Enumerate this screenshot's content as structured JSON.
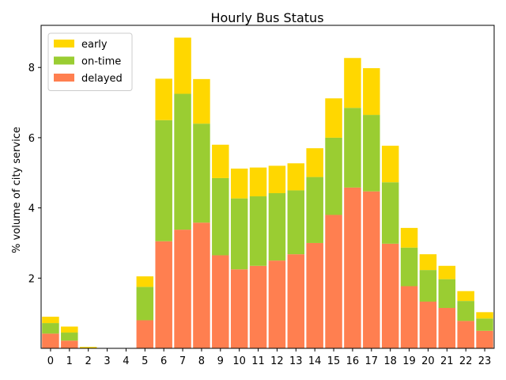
{
  "chart_data": {
    "type": "bar",
    "stacked": true,
    "title": "Hourly Bus Status",
    "xlabel": "",
    "ylabel": "% volume of city service",
    "categories": [
      "0",
      "1",
      "2",
      "3",
      "4",
      "5",
      "6",
      "7",
      "8",
      "9",
      "10",
      "11",
      "12",
      "13",
      "14",
      "15",
      "16",
      "17",
      "18",
      "19",
      "20",
      "21",
      "22",
      "23"
    ],
    "yticks": [
      2,
      4,
      6,
      8
    ],
    "ylim": [
      0,
      9.2
    ],
    "grid": false,
    "legend_position": "top-left",
    "series": [
      {
        "name": "delayed",
        "color": "#ff7f50",
        "values": [
          0.42,
          0.22,
          0.0,
          0.0,
          0.0,
          0.8,
          3.05,
          3.38,
          3.58,
          2.65,
          2.25,
          2.35,
          2.5,
          2.68,
          3.0,
          3.8,
          4.58,
          4.47,
          2.98,
          1.77,
          1.33,
          1.15,
          0.78,
          0.5
        ]
      },
      {
        "name": "on-time",
        "color": "#9acd32",
        "values": [
          0.3,
          0.23,
          0.0,
          0.0,
          0.0,
          0.95,
          3.45,
          3.87,
          2.82,
          2.2,
          2.02,
          1.98,
          1.92,
          1.82,
          1.88,
          2.2,
          2.27,
          2.18,
          1.75,
          1.1,
          0.9,
          0.82,
          0.57,
          0.35
        ]
      },
      {
        "name": "early",
        "color": "#ffd700",
        "values": [
          0.18,
          0.17,
          0.04,
          0.0,
          0.0,
          0.3,
          1.18,
          1.6,
          1.27,
          0.95,
          0.85,
          0.82,
          0.78,
          0.77,
          0.82,
          1.12,
          1.42,
          1.33,
          1.04,
          0.56,
          0.45,
          0.38,
          0.28,
          0.18
        ]
      }
    ]
  }
}
